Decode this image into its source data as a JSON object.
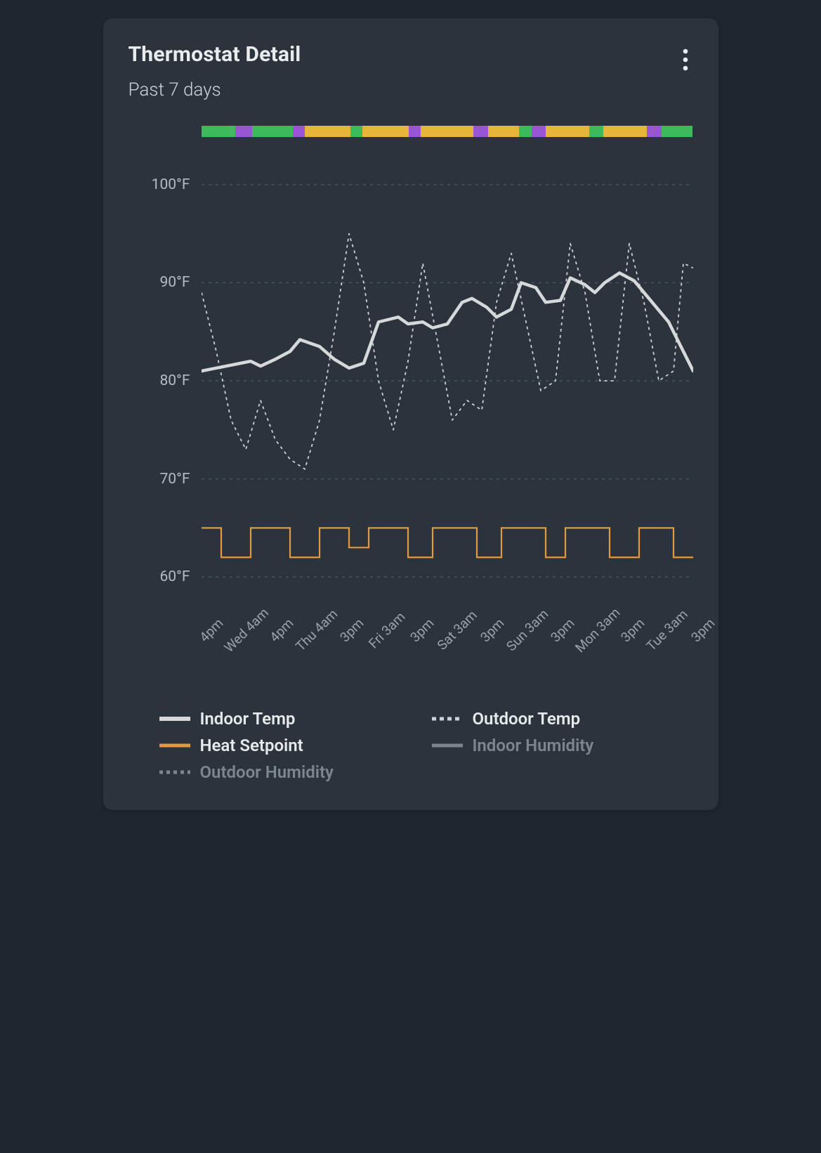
{
  "card": {
    "title": "Thermostat Detail",
    "subtitle": "Past 7 days"
  },
  "colors": {
    "page_bg": "#1e2730",
    "card_bg": "#2b343d",
    "title_text": "#e9ebec",
    "subtitle_text": "#cfd4d8",
    "axis_text": "#b4bbc1",
    "xaxis_text": "#9aa2a9",
    "gridline": "#5a636c",
    "indoor_temp": "#d6d8da",
    "outdoor_temp": "#cfd1d4",
    "heat_setpoint": "#e39a3e",
    "indoor_humidity": "#7e868d",
    "outdoor_humidity": "#7e868d",
    "mode_green": "#3dbb5b",
    "mode_purple": "#9a55d6",
    "mode_orange": "#e8b43a",
    "more_icon": "#e9ebec"
  },
  "mode_bar": {
    "segments": [
      {
        "color_key": "mode_green",
        "weight": 2.8
      },
      {
        "color_key": "mode_purple",
        "weight": 1.4
      },
      {
        "color_key": "mode_green",
        "weight": 3.4
      },
      {
        "color_key": "mode_purple",
        "weight": 1.0
      },
      {
        "color_key": "mode_orange",
        "weight": 3.8
      },
      {
        "color_key": "mode_green",
        "weight": 1.0
      },
      {
        "color_key": "mode_orange",
        "weight": 3.8
      },
      {
        "color_key": "mode_purple",
        "weight": 1.0
      },
      {
        "color_key": "mode_orange",
        "weight": 4.4
      },
      {
        "color_key": "mode_purple",
        "weight": 1.2
      },
      {
        "color_key": "mode_orange",
        "weight": 2.6
      },
      {
        "color_key": "mode_green",
        "weight": 1.0
      },
      {
        "color_key": "mode_purple",
        "weight": 1.2
      },
      {
        "color_key": "mode_orange",
        "weight": 3.6
      },
      {
        "color_key": "mode_green",
        "weight": 1.2
      },
      {
        "color_key": "mode_orange",
        "weight": 3.6
      },
      {
        "color_key": "mode_purple",
        "weight": 1.2
      },
      {
        "color_key": "mode_green",
        "weight": 2.6
      }
    ]
  },
  "chart": {
    "type": "line",
    "y_axis": {
      "min": 56,
      "max": 104,
      "ticks": [
        60,
        70,
        80,
        90,
        100
      ],
      "unit": "°F",
      "grid_dash": "4 6"
    },
    "x_axis": {
      "labels": [
        "4pm",
        "Wed 4am",
        "4pm",
        "Thu 4am",
        "3pm",
        "Fri 3am",
        "3pm",
        "Sat 3am",
        "3pm",
        "Sun 3am",
        "3pm",
        "Mon 3am",
        "3pm",
        "Tue 3am",
        "3pm"
      ]
    },
    "line_widths": {
      "indoor_temp": 4.5,
      "outdoor_temp": 1.8,
      "heat_setpoint": 2.2
    },
    "dash": {
      "outdoor_temp": "4 5"
    },
    "series_y_min": 56,
    "series_y_max": 104,
    "indoor_temp": {
      "x": [
        0,
        3,
        5,
        8,
        10,
        12,
        15,
        18,
        20,
        24,
        27,
        30,
        33,
        36,
        40,
        42,
        45,
        47,
        50,
        53,
        55,
        58,
        60,
        63,
        65,
        68,
        70,
        73,
        75,
        78,
        80,
        82,
        85,
        88,
        90,
        92,
        95,
        98,
        100
      ],
      "y": [
        81,
        81.3,
        81.5,
        81.8,
        82.0,
        81.5,
        82.2,
        83.0,
        84.2,
        83.5,
        82.2,
        81.3,
        81.8,
        86.0,
        86.5,
        85.8,
        86.0,
        85.4,
        85.8,
        88.0,
        88.4,
        87.5,
        86.5,
        87.3,
        90.0,
        89.5,
        88.0,
        88.2,
        90.5,
        89.8,
        89.0,
        90.0,
        91.0,
        90.2,
        89.0,
        87.8,
        86.0,
        83.0,
        81.0
      ]
    },
    "outdoor_temp": {
      "x": [
        0,
        3,
        6,
        9,
        12,
        15,
        18,
        21,
        24,
        27,
        30,
        33,
        36,
        39,
        42,
        45,
        48,
        51,
        54,
        57,
        60,
        63,
        66,
        69,
        72,
        75,
        78,
        81,
        84,
        87,
        90,
        93,
        96,
        98,
        100
      ],
      "y": [
        89,
        83,
        76,
        73,
        78,
        74,
        72,
        71,
        76,
        85,
        95,
        90,
        80,
        75,
        82,
        92,
        84,
        76,
        78,
        77,
        88,
        93,
        86,
        79,
        80,
        94,
        89,
        80,
        80,
        94,
        88,
        80,
        81,
        92,
        91.5
      ]
    },
    "heat_setpoint": {
      "x": [
        0,
        4,
        4,
        10,
        10,
        18,
        18,
        24,
        24,
        30,
        30,
        34,
        34,
        42,
        42,
        47,
        47,
        56,
        56,
        61,
        61,
        70,
        70,
        74,
        74,
        83,
        83,
        89,
        89,
        96,
        96,
        100
      ],
      "y": [
        65,
        65,
        62,
        62,
        65,
        65,
        62,
        62,
        65,
        65,
        63,
        63,
        65,
        65,
        62,
        62,
        65,
        65,
        62,
        62,
        65,
        65,
        62,
        62,
        65,
        65,
        62,
        62,
        65,
        65,
        62,
        62
      ]
    }
  },
  "legend": {
    "items": [
      {
        "label": "Indoor Temp",
        "color_key": "indoor_temp",
        "style": "solid",
        "active": true
      },
      {
        "label": "Outdoor Temp",
        "color_key": "outdoor_temp",
        "style": "dashed-heavy",
        "active": true
      },
      {
        "label": "Heat Setpoint",
        "color_key": "heat_setpoint",
        "style": "solid",
        "active": true
      },
      {
        "label": "Indoor Humidity",
        "color_key": "indoor_humidity",
        "style": "solid",
        "active": false
      },
      {
        "label": "Outdoor Humidity",
        "color_key": "outdoor_humidity",
        "style": "dashed",
        "active": false
      }
    ]
  }
}
